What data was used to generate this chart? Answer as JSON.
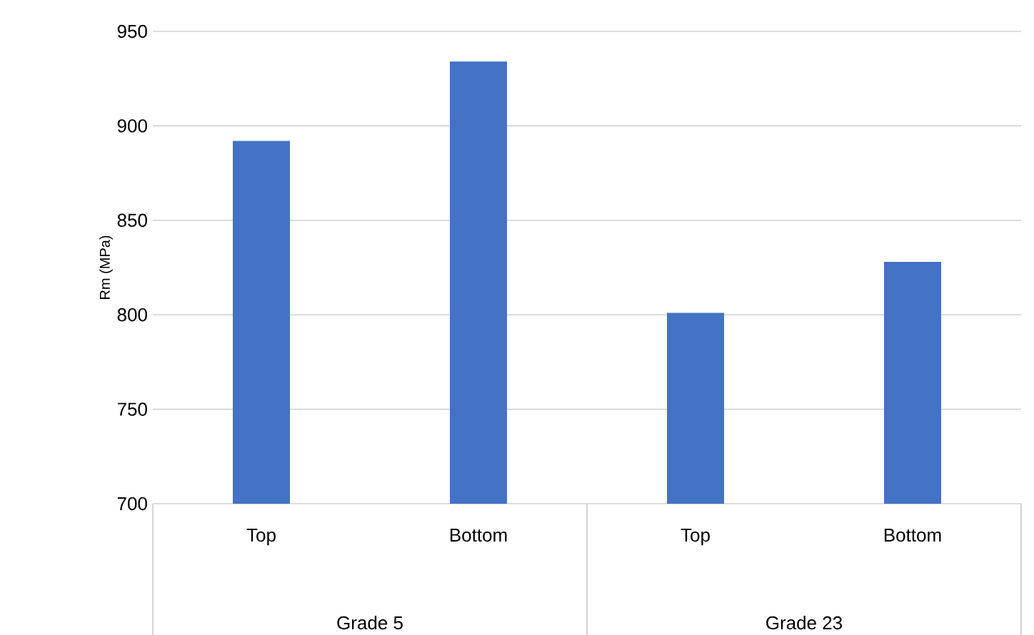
{
  "chart_data": {
    "type": "bar",
    "ylabel": "Rm (MPa)",
    "categories": [
      "Top",
      "Bottom",
      "Top",
      "Bottom"
    ],
    "values": [
      892,
      934,
      801,
      828
    ],
    "color": "#4472c4",
    "ylim": [
      700,
      950
    ],
    "yticks": [
      700,
      750,
      800,
      850,
      900,
      950
    ],
    "grid": "y",
    "annotations": [
      "Grade 5",
      "Grade 23"
    ]
  }
}
